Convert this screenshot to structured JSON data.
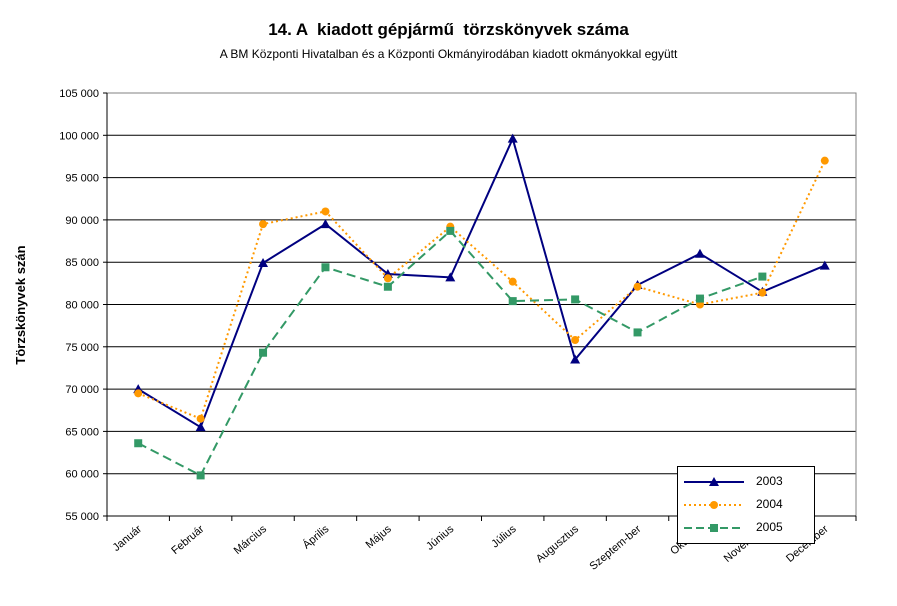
{
  "chart_data": {
    "type": "line",
    "title": "14. A  kiadott gépjármű  törzskönyvek száma",
    "subtitle": "A BM Központi Hivatalban és a Központi Okmányirodában kiadott okmányokkal együtt",
    "xlabel": "",
    "ylabel": "Törzskönyvek szán",
    "ylim": [
      55000,
      105000
    ],
    "y_ticks": [
      "55 000",
      "60 000",
      "65 000",
      "70 000",
      "75 000",
      "80 000",
      "85 000",
      "90 000",
      "95 000",
      "100 000",
      "105 000"
    ],
    "y_tick_values": [
      55000,
      60000,
      65000,
      70000,
      75000,
      80000,
      85000,
      90000,
      95000,
      100000,
      105000
    ],
    "grid": true,
    "legend_position": "bottom-right",
    "categories": [
      "Január",
      "Február",
      "Március",
      "Április",
      "Május",
      "Június",
      "Július",
      "Augusztus",
      "Szeptem-ber",
      "Október",
      "November",
      "December"
    ],
    "series": [
      {
        "name": "2003",
        "color": "#000080",
        "marker": "triangle",
        "dash": "solid",
        "values": [
          70000,
          65500,
          84900,
          89500,
          83600,
          83200,
          99600,
          73500,
          82300,
          86000,
          81500,
          84600
        ]
      },
      {
        "name": "2004",
        "color": "#FF9900",
        "marker": "circle",
        "dash": "dotted",
        "values": [
          69500,
          66500,
          89500,
          91000,
          83100,
          89200,
          82700,
          75800,
          82100,
          80000,
          81400,
          97000
        ]
      },
      {
        "name": "2005",
        "color": "#339966",
        "marker": "square",
        "dash": "dashed",
        "values": [
          63600,
          59800,
          74300,
          84400,
          82100,
          88700,
          80400,
          80600,
          76700,
          80700,
          83300,
          null
        ]
      }
    ]
  }
}
